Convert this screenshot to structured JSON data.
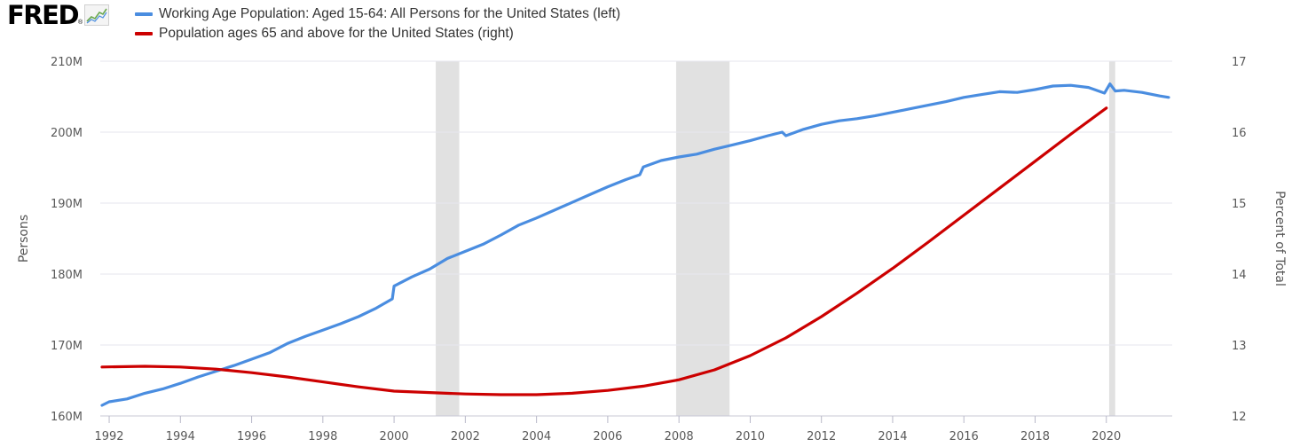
{
  "logo": {
    "text": "FRED",
    "mark": "®",
    "icon": "trend-line-icon"
  },
  "colors": {
    "left": "#4a8de0",
    "right": "#cc0000",
    "recession": "#e1e1e1",
    "grid": "#e6e6ee"
  },
  "chart_data": {
    "type": "line",
    "legend_placement": "top-left",
    "series": [
      {
        "name": "Working Age Population: Aged 15-64: All Persons for the United States (left)",
        "axis": "left",
        "points": [
          [
            1991.8,
            161.5
          ],
          [
            1992.0,
            162.0
          ],
          [
            1992.5,
            162.4
          ],
          [
            1993.0,
            163.2
          ],
          [
            1993.5,
            163.8
          ],
          [
            1994.0,
            164.6
          ],
          [
            1994.5,
            165.5
          ],
          [
            1995.0,
            166.3
          ],
          [
            1995.5,
            167.1
          ],
          [
            1996.0,
            168.0
          ],
          [
            1996.5,
            168.9
          ],
          [
            1997.0,
            170.2
          ],
          [
            1997.5,
            171.2
          ],
          [
            1998.0,
            172.1
          ],
          [
            1998.5,
            173.0
          ],
          [
            1999.0,
            174.0
          ],
          [
            1999.5,
            175.2
          ],
          [
            1999.95,
            176.5
          ],
          [
            2000.0,
            178.3
          ],
          [
            2000.5,
            179.6
          ],
          [
            2001.0,
            180.7
          ],
          [
            2001.5,
            182.2
          ],
          [
            2002.0,
            183.2
          ],
          [
            2002.5,
            184.2
          ],
          [
            2003.0,
            185.5
          ],
          [
            2003.5,
            186.9
          ],
          [
            2004.0,
            187.9
          ],
          [
            2004.5,
            189.0
          ],
          [
            2005.0,
            190.1
          ],
          [
            2005.5,
            191.2
          ],
          [
            2006.0,
            192.3
          ],
          [
            2006.5,
            193.3
          ],
          [
            2006.9,
            194.0
          ],
          [
            2007.0,
            195.1
          ],
          [
            2007.5,
            196.0
          ],
          [
            2008.0,
            196.5
          ],
          [
            2008.5,
            196.9
          ],
          [
            2009.0,
            197.6
          ],
          [
            2009.5,
            198.2
          ],
          [
            2010.0,
            198.8
          ],
          [
            2010.5,
            199.5
          ],
          [
            2010.9,
            200.0
          ],
          [
            2011.0,
            199.5
          ],
          [
            2011.5,
            200.4
          ],
          [
            2012.0,
            201.1
          ],
          [
            2012.5,
            201.6
          ],
          [
            2013.0,
            201.9
          ],
          [
            2013.5,
            202.3
          ],
          [
            2014.0,
            202.8
          ],
          [
            2014.5,
            203.3
          ],
          [
            2015.0,
            203.8
          ],
          [
            2015.5,
            204.3
          ],
          [
            2016.0,
            204.9
          ],
          [
            2016.5,
            205.3
          ],
          [
            2017.0,
            205.7
          ],
          [
            2017.5,
            205.6
          ],
          [
            2018.0,
            206.0
          ],
          [
            2018.5,
            206.5
          ],
          [
            2019.0,
            206.6
          ],
          [
            2019.5,
            206.3
          ],
          [
            2019.95,
            205.5
          ],
          [
            2020.1,
            206.8
          ],
          [
            2020.25,
            205.8
          ],
          [
            2020.5,
            205.9
          ],
          [
            2021.0,
            205.6
          ],
          [
            2021.5,
            205.1
          ],
          [
            2021.75,
            204.9
          ]
        ]
      },
      {
        "name": "Population ages 65 and above for the United States (right)",
        "axis": "right",
        "points": [
          [
            1991.8,
            12.69
          ],
          [
            1993.0,
            12.7
          ],
          [
            1994.0,
            12.69
          ],
          [
            1995.0,
            12.66
          ],
          [
            1996.0,
            12.61
          ],
          [
            1997.0,
            12.55
          ],
          [
            1998.0,
            12.48
          ],
          [
            1999.0,
            12.41
          ],
          [
            2000.0,
            12.35
          ],
          [
            2001.0,
            12.33
          ],
          [
            2002.0,
            12.31
          ],
          [
            2003.0,
            12.3
          ],
          [
            2004.0,
            12.3
          ],
          [
            2005.0,
            12.32
          ],
          [
            2006.0,
            12.36
          ],
          [
            2007.0,
            12.42
          ],
          [
            2008.0,
            12.51
          ],
          [
            2009.0,
            12.65
          ],
          [
            2010.0,
            12.85
          ],
          [
            2011.0,
            13.1
          ],
          [
            2012.0,
            13.4
          ],
          [
            2013.0,
            13.73
          ],
          [
            2014.0,
            14.08
          ],
          [
            2015.0,
            14.45
          ],
          [
            2016.0,
            14.83
          ],
          [
            2017.0,
            15.21
          ],
          [
            2018.0,
            15.59
          ],
          [
            2019.0,
            15.97
          ],
          [
            2020.0,
            16.34
          ]
        ]
      }
    ],
    "recessions": [
      [
        2001.17,
        2001.83
      ],
      [
        2007.92,
        2009.42
      ],
      [
        2020.08,
        2020.25
      ]
    ],
    "x_ticks": [
      "1992",
      "1994",
      "1996",
      "1998",
      "2000",
      "2002",
      "2004",
      "2006",
      "2008",
      "2010",
      "2012",
      "2014",
      "2016",
      "2018",
      "2020"
    ],
    "y_left": {
      "label": "Persons",
      "ticks": [
        "160M",
        "170M",
        "180M",
        "190M",
        "200M",
        "210M"
      ],
      "lim": [
        160,
        210
      ]
    },
    "y_right": {
      "label": "Percent of Total",
      "ticks": [
        "12",
        "13",
        "14",
        "15",
        "16",
        "17"
      ],
      "lim": [
        12,
        17
      ]
    },
    "xlim": [
      1991.75,
      2021.85
    ],
    "grid": true
  }
}
